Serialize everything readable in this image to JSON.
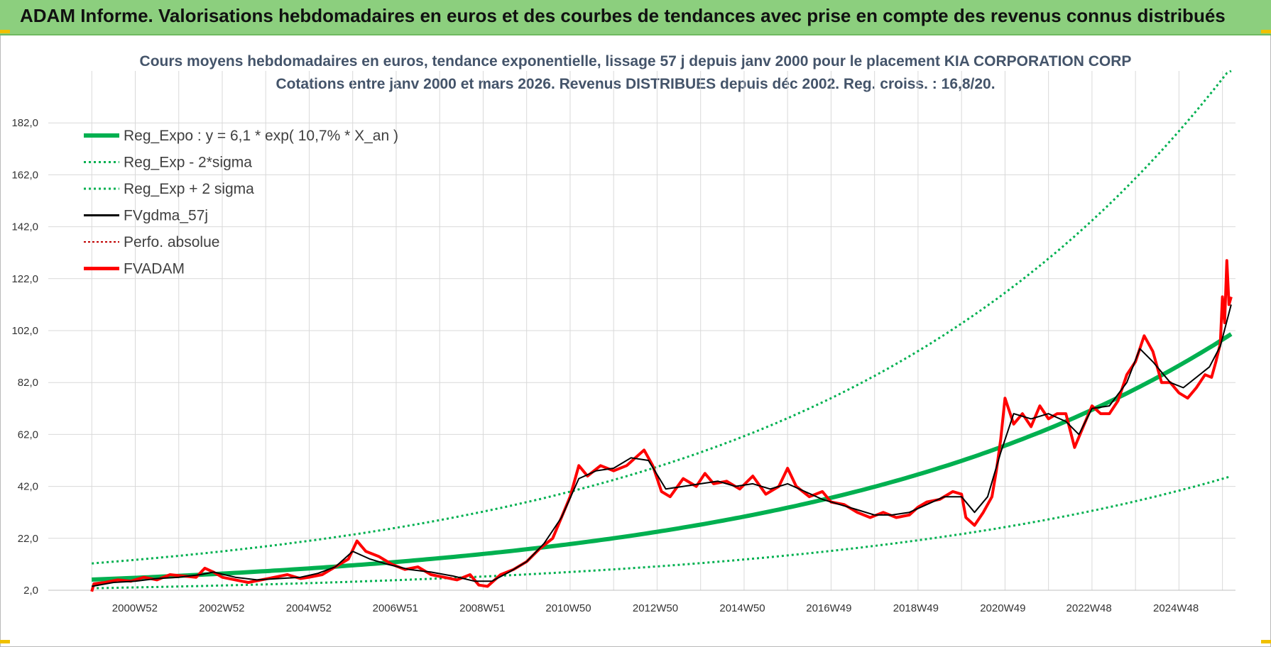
{
  "banner": {
    "title": "ADAM Informe. Valorisations hebdomadaires en euros et des courbes de tendances avec prise en compte des revenus connus distribués"
  },
  "colors": {
    "banner_bg": "#8ccf7e",
    "reg": "#00b050",
    "fvgdma": "#000000",
    "fvadam": "#ff0000",
    "perfo": "#c00000",
    "grid": "#d9d9d9"
  },
  "chart_data": {
    "type": "line",
    "title": "Cours moyens hebdomadaires en euros, tendance exponentielle, lissage 57 j depuis janv 2000  pour le placement KIA CORPORATION CORP",
    "subtitle": "Cotations entre janv 2000 et mars 2026. Revenus DISTRIBUES depuis déc 2002. Reg. croiss. : 16,8/20.",
    "xlabel": "",
    "ylabel": "",
    "xlim": [
      1999.0,
      2026.3
    ],
    "ylim": [
      2,
      202
    ],
    "y_ticks": [
      "182,0",
      "162,0",
      "142,0",
      "122,0",
      "102,0",
      "82,0",
      "62,0",
      "42,0",
      "22,0",
      "2,0"
    ],
    "x_ticks": [
      "2000W52",
      "2002W52",
      "2004W52",
      "2006W51",
      "2008W51",
      "2010W50",
      "2012W50",
      "2014W50",
      "2016W49",
      "2018W49",
      "2020W49",
      "2022W48",
      "2024W48"
    ],
    "x_tick_years": [
      2000.99,
      2002.99,
      2004.99,
      2006.98,
      2008.98,
      2010.96,
      2012.96,
      2014.96,
      2016.95,
      2018.95,
      2020.95,
      2022.93,
      2024.93
    ],
    "legend": [
      "Reg_Expo : y = 6,1 * exp( 10,7% *  X_an )",
      "Reg_Exp - 2*sigma",
      "Reg_Exp + 2 sigma",
      "FVgdma_57j",
      "Perfo. absolue",
      "FVADAM"
    ],
    "regression": {
      "a": 6.1,
      "rate": 0.107,
      "start_year": 2000.0,
      "end_year": 2026.2,
      "lower_factor": 0.456,
      "upper_factor": 2.02,
      "upper_cap": 202
    },
    "series": [
      {
        "name": "FVADAM",
        "x": [
          2000.0,
          2000.05,
          2000.3,
          2000.6,
          2000.9,
          2001.2,
          2001.5,
          2001.8,
          2002.1,
          2002.4,
          2002.6,
          2002.8,
          2003.0,
          2003.3,
          2003.6,
          2003.9,
          2004.2,
          2004.5,
          2004.8,
          2005.0,
          2005.3,
          2005.5,
          2005.7,
          2005.9,
          2006.1,
          2006.3,
          2006.6,
          2006.9,
          2007.2,
          2007.5,
          2007.8,
          2008.1,
          2008.4,
          2008.7,
          2008.9,
          2009.1,
          2009.4,
          2009.7,
          2010.0,
          2010.3,
          2010.6,
          2010.8,
          2011.0,
          2011.2,
          2011.4,
          2011.7,
          2012.0,
          2012.3,
          2012.5,
          2012.7,
          2012.9,
          2013.1,
          2013.3,
          2013.6,
          2013.9,
          2014.1,
          2014.3,
          2014.6,
          2014.9,
          2015.2,
          2015.5,
          2015.8,
          2016.0,
          2016.2,
          2016.5,
          2016.8,
          2017.0,
          2017.3,
          2017.6,
          2017.9,
          2018.2,
          2018.5,
          2018.8,
          2019.0,
          2019.2,
          2019.5,
          2019.8,
          2020.0,
          2020.1,
          2020.3,
          2020.5,
          2020.7,
          2020.8,
          2020.9,
          2021.0,
          2021.2,
          2021.4,
          2021.6,
          2021.8,
          2022.0,
          2022.2,
          2022.4,
          2022.6,
          2022.8,
          2023.0,
          2023.2,
          2023.4,
          2023.6,
          2023.8,
          2024.0,
          2024.2,
          2024.4,
          2024.6,
          2024.8,
          2025.0,
          2025.2,
          2025.4,
          2025.6,
          2025.75,
          2025.85,
          2025.95,
          2026.0,
          2026.05,
          2026.1,
          2026.15,
          2026.2
        ],
        "values": [
          1.5,
          4.5,
          5.0,
          6.0,
          5.5,
          7.0,
          6.0,
          8.0,
          7.5,
          7.0,
          10.5,
          9.0,
          7.0,
          6.0,
          5.0,
          6.0,
          7.0,
          8.0,
          6.5,
          7.0,
          8.0,
          10.0,
          12.0,
          14.0,
          21.0,
          17.0,
          15.0,
          12.0,
          10.0,
          11.0,
          8.0,
          7.0,
          6.0,
          8.0,
          4.0,
          3.5,
          8.0,
          10.0,
          13.0,
          18.0,
          22.0,
          30.0,
          38.0,
          50.0,
          46.0,
          50.0,
          48.0,
          50.0,
          53.0,
          56.0,
          50.0,
          40.0,
          38.0,
          45.0,
          42.0,
          47.0,
          43.0,
          44.0,
          41.0,
          46.0,
          39.0,
          42.0,
          49.0,
          42.0,
          38.0,
          40.0,
          36.0,
          35.0,
          32.0,
          30.0,
          32.0,
          30.0,
          31.0,
          34.0,
          36.0,
          37.0,
          40.0,
          39.0,
          30.0,
          27.0,
          32.0,
          38.0,
          48.0,
          60.0,
          76.0,
          66.0,
          70.0,
          65.0,
          73.0,
          68.0,
          70.0,
          70.0,
          57.0,
          65.0,
          73.0,
          70.0,
          70.0,
          75.0,
          85.0,
          90.0,
          100.0,
          94.0,
          82.0,
          82.0,
          78.0,
          76.0,
          80.0,
          85.0,
          84.0,
          90.0,
          97.0,
          115.0,
          105.0,
          129.0,
          112.0,
          115.0
        ]
      },
      {
        "name": "FVgdma_57j",
        "x": [
          2000.0,
          2000.5,
          2001.0,
          2001.5,
          2002.0,
          2002.5,
          2002.8,
          2003.3,
          2003.8,
          2004.3,
          2004.8,
          2005.2,
          2005.6,
          2006.0,
          2006.4,
          2006.8,
          2007.3,
          2007.8,
          2008.3,
          2008.8,
          2009.2,
          2009.6,
          2010.0,
          2010.4,
          2010.8,
          2011.2,
          2011.6,
          2012.0,
          2012.4,
          2012.8,
          2013.2,
          2013.6,
          2014.0,
          2014.4,
          2014.8,
          2015.2,
          2015.6,
          2016.0,
          2016.4,
          2016.8,
          2017.2,
          2017.6,
          2018.0,
          2018.4,
          2018.8,
          2019.2,
          2019.6,
          2020.0,
          2020.3,
          2020.6,
          2020.9,
          2021.2,
          2021.6,
          2022.0,
          2022.4,
          2022.7,
          2023.0,
          2023.4,
          2023.8,
          2024.1,
          2024.4,
          2024.8,
          2025.1,
          2025.4,
          2025.7,
          2025.95,
          2026.2
        ],
        "values": [
          3.5,
          5.0,
          5.5,
          6.5,
          7.0,
          8.0,
          9.0,
          7.0,
          6.0,
          6.5,
          7.0,
          8.5,
          11.0,
          17.0,
          14.0,
          12.0,
          10.0,
          9.0,
          7.5,
          5.5,
          5.5,
          9.0,
          13.0,
          20.0,
          30.0,
          45.0,
          48.0,
          49.0,
          53.0,
          52.0,
          41.0,
          42.0,
          43.0,
          44.0,
          42.0,
          43.0,
          41.0,
          43.0,
          40.0,
          37.0,
          35.0,
          33.0,
          31.0,
          31.0,
          32.0,
          35.0,
          38.0,
          38.0,
          32.0,
          38.0,
          55.0,
          70.0,
          68.0,
          70.0,
          67.0,
          62.0,
          72.0,
          73.0,
          82.0,
          95.0,
          90.0,
          82.0,
          80.0,
          84.0,
          88.0,
          96.0,
          112.0
        ]
      }
    ]
  }
}
